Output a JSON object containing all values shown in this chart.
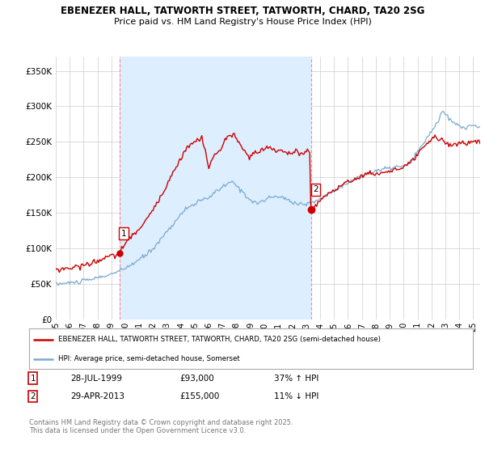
{
  "title": "EBENEZER HALL, TATWORTH STREET, TATWORTH, CHARD, TA20 2SG",
  "subtitle": "Price paid vs. HM Land Registry's House Price Index (HPI)",
  "ylabel_ticks": [
    "£0",
    "£50K",
    "£100K",
    "£150K",
    "£200K",
    "£250K",
    "£300K",
    "£350K"
  ],
  "ytick_vals": [
    0,
    50000,
    100000,
    150000,
    200000,
    250000,
    300000,
    350000
  ],
  "ylim": [
    0,
    370000
  ],
  "xlim_start": 1995.0,
  "xlim_end": 2025.5,
  "sale1_x": 1999.57,
  "sale1_y": 93000,
  "sale1_label": "28-JUL-1999",
  "sale1_price": "£93,000",
  "sale1_hpi": "37% ↑ HPI",
  "sale2_x": 2013.33,
  "sale2_y": 155000,
  "sale2_label": "29-APR-2013",
  "sale2_price": "£155,000",
  "sale2_hpi": "11% ↓ HPI",
  "legend_line1": "EBENEZER HALL, TATWORTH STREET, TATWORTH, CHARD, TA20 2SG (semi-detached house)",
  "legend_line2": "HPI: Average price, semi-detached house, Somerset",
  "footer": "Contains HM Land Registry data © Crown copyright and database right 2025.\nThis data is licensed under the Open Government Licence v3.0.",
  "sale_color": "#cc0000",
  "hpi_color": "#7aaad0",
  "fill_color": "#ddeeff",
  "vline_color": "#ff8888",
  "background_color": "#ffffff",
  "grid_color": "#cccccc"
}
